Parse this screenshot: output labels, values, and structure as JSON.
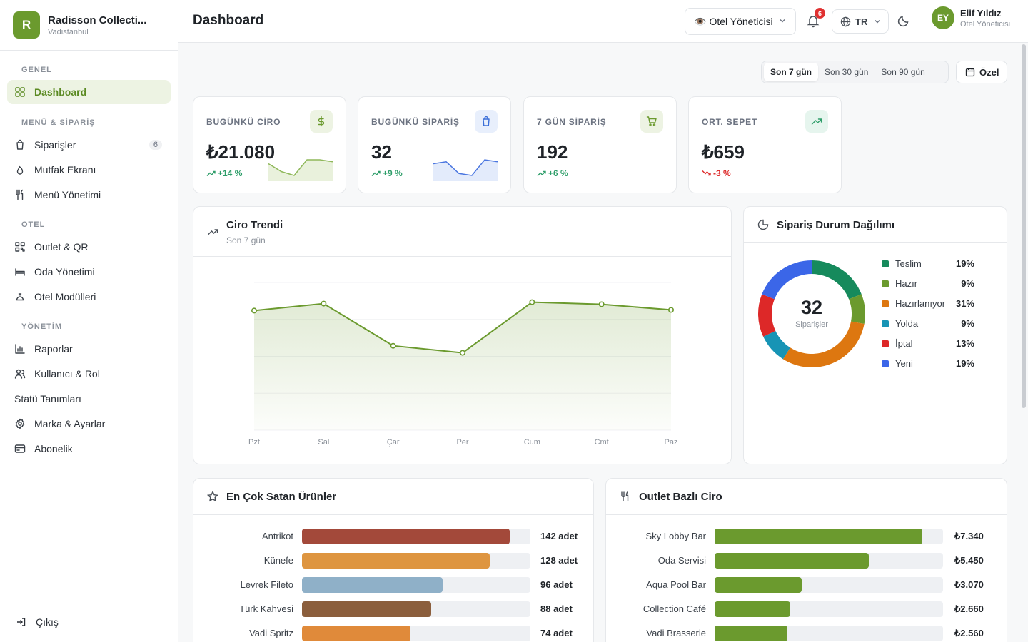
{
  "brand": {
    "initial": "R",
    "name": "Radisson Collecti...",
    "sub": "Vadistanbul"
  },
  "sidebar": {
    "sections": [
      {
        "title": "GENEL",
        "items": [
          {
            "label": "Dashboard",
            "icon": "grid-icon",
            "active": true
          }
        ]
      },
      {
        "title": "MENÜ & SİPARİŞ",
        "items": [
          {
            "label": "Siparişler",
            "icon": "bag-icon",
            "badge": "6"
          },
          {
            "label": "Mutfak Ekranı",
            "icon": "flame-icon"
          },
          {
            "label": "Menü Yönetimi",
            "icon": "utensils-icon"
          }
        ]
      },
      {
        "title": "OTEL",
        "items": [
          {
            "label": "Outlet & QR",
            "icon": "qr-icon"
          },
          {
            "label": "Oda Yönetimi",
            "icon": "bed-icon"
          },
          {
            "label": "Otel Modülleri",
            "icon": "concierge-icon"
          }
        ]
      },
      {
        "title": "YÖNETİM",
        "items": [
          {
            "label": "Raporlar",
            "icon": "chart-icon"
          },
          {
            "label": "Kullanıcı & Rol",
            "icon": "users-icon"
          },
          {
            "label": "Statü Tanımları",
            "icon": ""
          },
          {
            "label": "Marka & Ayarlar",
            "icon": "gear-icon"
          },
          {
            "label": "Abonelik",
            "icon": "card-icon"
          }
        ]
      }
    ],
    "logout": "Çıkış"
  },
  "header": {
    "title": "Dashboard",
    "role": "Otel Yöneticisi",
    "notifications": "6",
    "language": "TR",
    "user_initials": "EY",
    "user_name": "Elif Yıldız",
    "user_role": "Otel Yöneticisi"
  },
  "range": {
    "tabs": [
      "Son 7 gün",
      "Son 30 gün",
      "Son 90 gün"
    ],
    "active": 0,
    "custom": "Özel"
  },
  "kpis": [
    {
      "label": "BUGÜNKÜ CİRO",
      "value": "₺21.080",
      "delta": "+14 %",
      "trend": "up",
      "icon": "dollar-icon",
      "accent": "#6b9a2e",
      "icon_bg": "#edf3e3",
      "spark": [
        4,
        2,
        1,
        5,
        5,
        4.5
      ],
      "spark_color": "#8fb85a",
      "spark_fill": "#e9f1dc"
    },
    {
      "label": "BUGÜNKÜ SİPARİŞ",
      "value": "32",
      "delta": "+9 %",
      "trend": "up",
      "icon": "bag-icon",
      "accent": "#3b6fd8",
      "icon_bg": "#e8effc",
      "spark": [
        4,
        4.5,
        1.5,
        1,
        5,
        4.5
      ],
      "spark_color": "#4a76e0",
      "spark_fill": "#e3ebfb"
    },
    {
      "label": "7 GÜN SİPARİŞ",
      "value": "192",
      "delta": "+6 %",
      "trend": "up",
      "icon": "cart-icon",
      "accent": "#6b9a2e",
      "icon_bg": "#edf3e3"
    },
    {
      "label": "ORT. SEPET",
      "value": "₺659",
      "delta": "-3 %",
      "trend": "down",
      "icon": "trend-icon",
      "accent": "#2f9e6a",
      "icon_bg": "#e6f5ee"
    }
  ],
  "revenue": {
    "title": "Ciro Trendi",
    "subtitle": "Son 7 gün",
    "chart_data": {
      "type": "area",
      "categories": [
        "Pzt",
        "Sal",
        "Çar",
        "Per",
        "Cum",
        "Cmt",
        "Paz"
      ],
      "values": [
        17000,
        18000,
        12000,
        11000,
        18200,
        17900,
        17100
      ],
      "ylim": [
        0,
        21000
      ],
      "color": "#6b9a2e"
    }
  },
  "status": {
    "title": "Sipariş Durum Dağılımı",
    "total": "32",
    "total_label": "Siparişler",
    "chart_data": {
      "type": "pie",
      "labels": [
        "Teslim",
        "Hazır",
        "Hazırlanıyor",
        "Yolda",
        "İptal",
        "Yeni"
      ],
      "values": [
        19,
        9,
        31,
        9,
        13,
        19
      ],
      "display": [
        "19%",
        "9%",
        "31%",
        "9%",
        "13%",
        "19%"
      ],
      "colors": [
        "#168a5c",
        "#6b9a2e",
        "#dd7710",
        "#1794b5",
        "#dd2828",
        "#3b66e8"
      ]
    }
  },
  "top_products": {
    "title": "En Çok Satan Ürünler",
    "chart_data": {
      "type": "bar",
      "categories": [
        "Antrikot",
        "Künefe",
        "Levrek Fileto",
        "Türk Kahvesi",
        "Vadi Spritz"
      ],
      "values": [
        142,
        128,
        96,
        88,
        74
      ],
      "display": [
        "142 adet",
        "128 adet",
        "96 adet",
        "88 adet",
        "74 adet"
      ],
      "colors": [
        "#a3493a",
        "#de9540",
        "#8fb0c8",
        "#8b5e3c",
        "#e08a3a"
      ],
      "max": 156
    }
  },
  "outlets": {
    "title": "Outlet Bazlı Ciro",
    "chart_data": {
      "type": "bar",
      "categories": [
        "Sky Lobby Bar",
        "Oda Servisi",
        "Aqua Pool Bar",
        "Collection Café",
        "Vadi Brasserie"
      ],
      "values": [
        7340,
        5450,
        3070,
        2660,
        2560
      ],
      "display": [
        "₺7.340",
        "₺5.450",
        "₺3.070",
        "₺2.660",
        "₺2.560"
      ],
      "color": "#6b9a2e",
      "max": 8070
    }
  }
}
